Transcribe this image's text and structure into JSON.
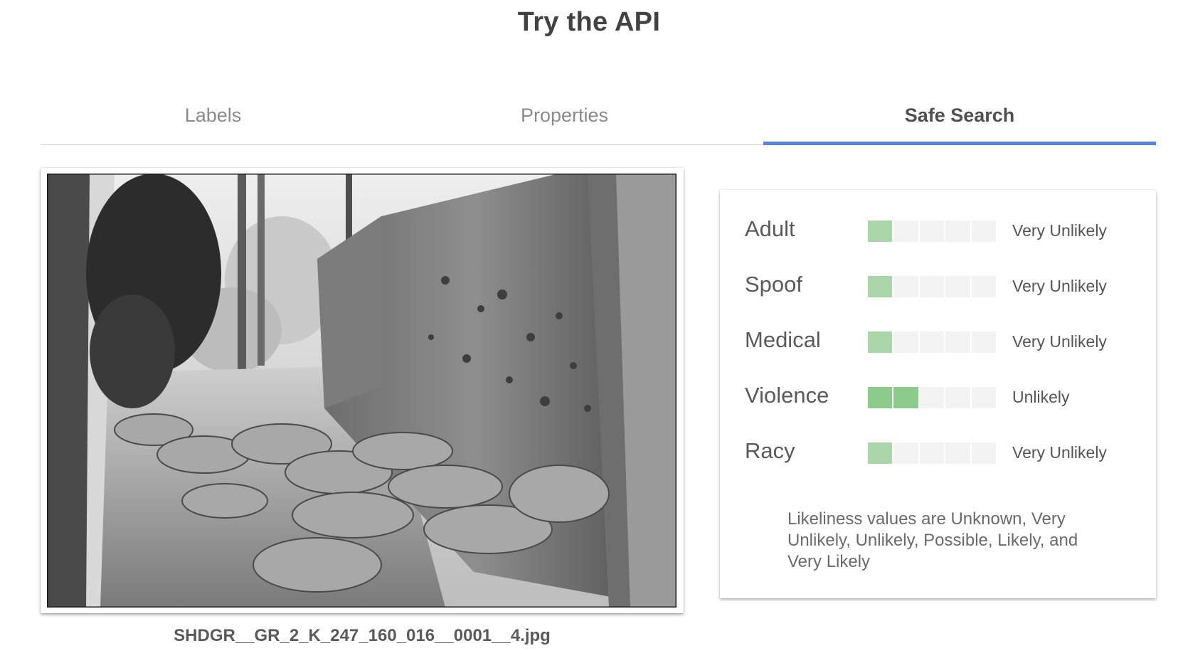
{
  "page": {
    "title": "Try the API"
  },
  "tabs": [
    {
      "label": "Labels",
      "active": false
    },
    {
      "label": "Properties",
      "active": false
    },
    {
      "label": "Safe Search",
      "active": true
    }
  ],
  "colors": {
    "accent": "#4f86ec",
    "bar_on": "#a9d5a9",
    "bar_on_strong": "#8ccb8c",
    "bar_off": "#f3f3f3"
  },
  "image": {
    "filename": "SHDGR__GR_2_K_247_160_016__0001__4.jpg",
    "description": "black-and-white photograph"
  },
  "safe_search": {
    "scale_levels": 5,
    "rows": [
      {
        "category": "Adult",
        "value": "Very Unlikely",
        "level": 1
      },
      {
        "category": "Spoof",
        "value": "Very Unlikely",
        "level": 1
      },
      {
        "category": "Medical",
        "value": "Very Unlikely",
        "level": 1
      },
      {
        "category": "Violence",
        "value": "Unlikely",
        "level": 2
      },
      {
        "category": "Racy",
        "value": "Very Unlikely",
        "level": 1
      }
    ],
    "note": "Likeliness values are Unknown, Very Unlikely, Unlikely, Possible, Likely, and Very Likely"
  }
}
